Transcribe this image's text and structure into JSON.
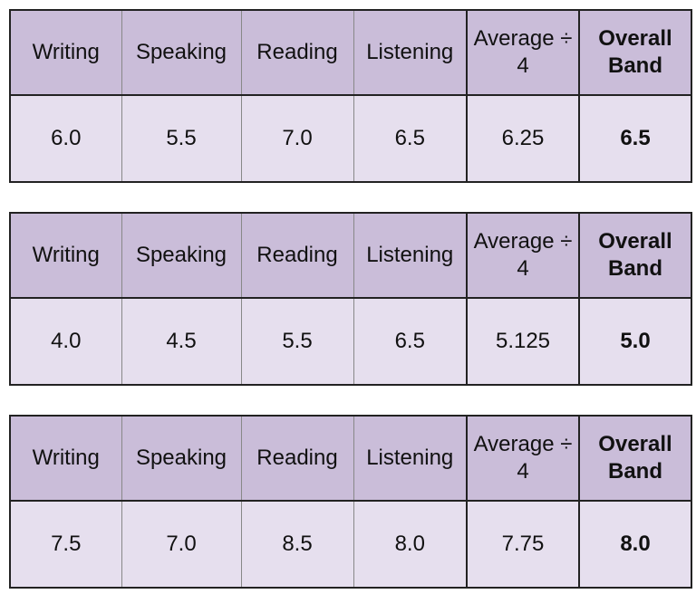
{
  "tables": [
    {
      "header": [
        "Writing",
        "Speaking",
        "Reading",
        "Listening",
        "Average ÷ 4",
        "Overall Band"
      ],
      "rows": [
        [
          "6.0",
          "5.5",
          "7.0",
          "6.5",
          "6.25",
          "6.5"
        ]
      ]
    },
    {
      "header": [
        "Writing",
        "Speaking",
        "Reading",
        "Listening",
        "Average ÷ 4",
        "Overall Band"
      ],
      "rows": [
        [
          "4.0",
          "4.5",
          "5.5",
          "6.5",
          "5.125",
          "5.0"
        ]
      ]
    },
    {
      "header": [
        "Writing",
        "Speaking",
        "Reading",
        "Listening",
        "Average ÷ 4",
        "Overall Band"
      ],
      "rows": [
        [
          "7.5",
          "7.0",
          "8.5",
          "8.0",
          "7.75",
          "8.0"
        ]
      ]
    }
  ]
}
